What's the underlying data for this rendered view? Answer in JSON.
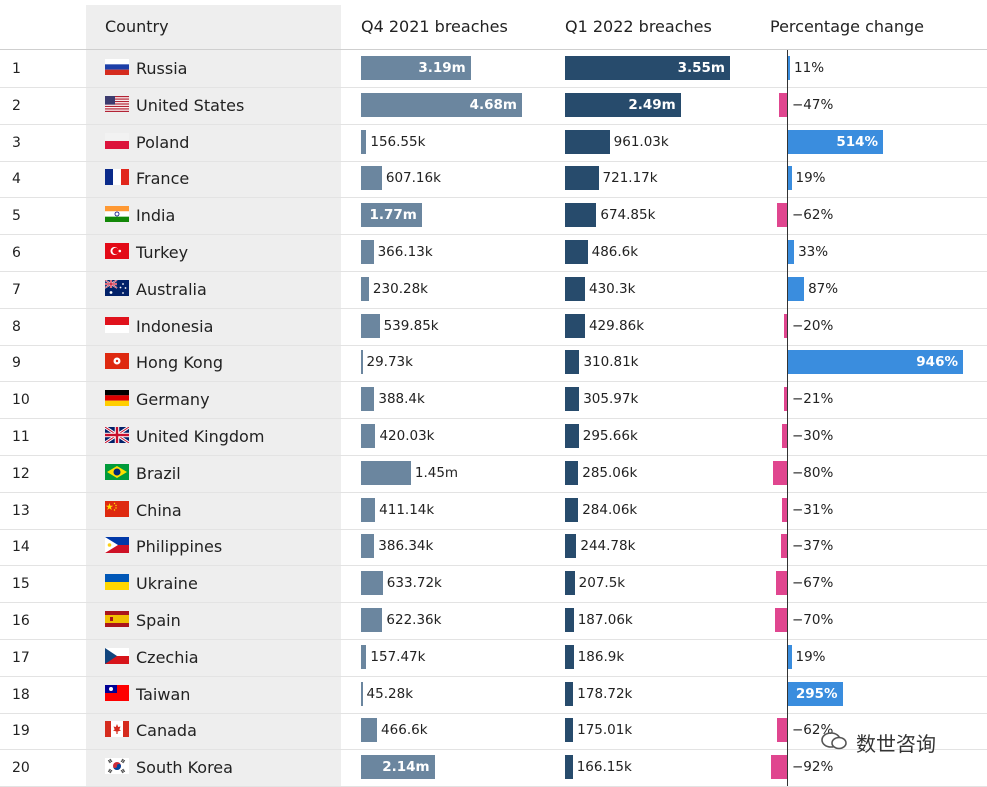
{
  "header": {
    "country": "Country",
    "q4": "Q4 2021 breaches",
    "q1": "Q1 2022 breaches",
    "pct": "Percentage change"
  },
  "watermark": "数世咨询",
  "chart_data": {
    "type": "table",
    "columns": [
      "Country",
      "Q4 2021 breaches",
      "Q1 2022 breaches",
      "Percentage change"
    ],
    "rows": [
      {
        "rank": "1",
        "country": "Russia",
        "flag": "russia-flag",
        "q4": 3190000,
        "q4_label": "3.19m",
        "q1": 3550000,
        "q1_label": "3.55m",
        "pct": 11,
        "pct_label": "11%"
      },
      {
        "rank": "2",
        "country": "United States",
        "flag": "us-flag",
        "q4": 4680000,
        "q4_label": "4.68m",
        "q1": 2490000,
        "q1_label": "2.49m",
        "pct": -47,
        "pct_label": "−47%"
      },
      {
        "rank": "3",
        "country": "Poland",
        "flag": "poland-flag",
        "q4": 156550,
        "q4_label": "156.55k",
        "q1": 961030,
        "q1_label": "961.03k",
        "pct": 514,
        "pct_label": "514%"
      },
      {
        "rank": "4",
        "country": "France",
        "flag": "france-flag",
        "q4": 607160,
        "q4_label": "607.16k",
        "q1": 721170,
        "q1_label": "721.17k",
        "pct": 19,
        "pct_label": "19%"
      },
      {
        "rank": "5",
        "country": "India",
        "flag": "india-flag",
        "q4": 1770000,
        "q4_label": "1.77m",
        "q1": 674850,
        "q1_label": "674.85k",
        "pct": -62,
        "pct_label": "−62%"
      },
      {
        "rank": "6",
        "country": "Turkey",
        "flag": "turkey-flag",
        "q4": 366130,
        "q4_label": "366.13k",
        "q1": 486600,
        "q1_label": "486.6k",
        "pct": 33,
        "pct_label": "33%"
      },
      {
        "rank": "7",
        "country": "Australia",
        "flag": "australia-flag",
        "q4": 230280,
        "q4_label": "230.28k",
        "q1": 430300,
        "q1_label": "430.3k",
        "pct": 87,
        "pct_label": "87%"
      },
      {
        "rank": "8",
        "country": "Indonesia",
        "flag": "indonesia-flag",
        "q4": 539850,
        "q4_label": "539.85k",
        "q1": 429860,
        "q1_label": "429.86k",
        "pct": -20,
        "pct_label": "−20%"
      },
      {
        "rank": "9",
        "country": "Hong Kong",
        "flag": "hongkong-flag",
        "q4": 29730,
        "q4_label": "29.73k",
        "q1": 310810,
        "q1_label": "310.81k",
        "pct": 946,
        "pct_label": "946%"
      },
      {
        "rank": "10",
        "country": "Germany",
        "flag": "germany-flag",
        "q4": 388400,
        "q4_label": "388.4k",
        "q1": 305970,
        "q1_label": "305.97k",
        "pct": -21,
        "pct_label": "−21%"
      },
      {
        "rank": "11",
        "country": "United Kingdom",
        "flag": "uk-flag",
        "q4": 420030,
        "q4_label": "420.03k",
        "q1": 295660,
        "q1_label": "295.66k",
        "pct": -30,
        "pct_label": "−30%"
      },
      {
        "rank": "12",
        "country": "Brazil",
        "flag": "brazil-flag",
        "q4": 1450000,
        "q4_label": "1.45m",
        "q1": 285060,
        "q1_label": "285.06k",
        "pct": -80,
        "pct_label": "−80%"
      },
      {
        "rank": "13",
        "country": "China",
        "flag": "china-flag",
        "q4": 411140,
        "q4_label": "411.14k",
        "q1": 284060,
        "q1_label": "284.06k",
        "pct": -31,
        "pct_label": "−31%"
      },
      {
        "rank": "14",
        "country": "Philippines",
        "flag": "philippines-flag",
        "q4": 386340,
        "q4_label": "386.34k",
        "q1": 244780,
        "q1_label": "244.78k",
        "pct": -37,
        "pct_label": "−37%"
      },
      {
        "rank": "15",
        "country": "Ukraine",
        "flag": "ukraine-flag",
        "q4": 633720,
        "q4_label": "633.72k",
        "q1": 207500,
        "q1_label": "207.5k",
        "pct": -67,
        "pct_label": "−67%"
      },
      {
        "rank": "16",
        "country": "Spain",
        "flag": "spain-flag",
        "q4": 622360,
        "q4_label": "622.36k",
        "q1": 187060,
        "q1_label": "187.06k",
        "pct": -70,
        "pct_label": "−70%"
      },
      {
        "rank": "17",
        "country": "Czechia",
        "flag": "czechia-flag",
        "q4": 157470,
        "q4_label": "157.47k",
        "q1": 186900,
        "q1_label": "186.9k",
        "pct": 19,
        "pct_label": "19%"
      },
      {
        "rank": "18",
        "country": "Taiwan",
        "flag": "taiwan-flag",
        "q4": 45280,
        "q4_label": "45.28k",
        "q1": 178720,
        "q1_label": "178.72k",
        "pct": 295,
        "pct_label": "295%"
      },
      {
        "rank": "19",
        "country": "Canada",
        "flag": "canada-flag",
        "q4": 466600,
        "q4_label": "466.6k",
        "q1": 175010,
        "q1_label": "175.01k",
        "pct": -62,
        "pct_label": "−62%"
      },
      {
        "rank": "20",
        "country": "South Korea",
        "flag": "southkorea-flag",
        "q4": 2140000,
        "q4_label": "2.14m",
        "q1": 166150,
        "q1_label": "166.15k",
        "pct": -92,
        "pct_label": "−92%"
      }
    ],
    "colors": {
      "q4_bar": "#6b869f",
      "q1_bar": "#274b6c",
      "positive": "#3a8dde",
      "negative": "#e0468f"
    }
  }
}
